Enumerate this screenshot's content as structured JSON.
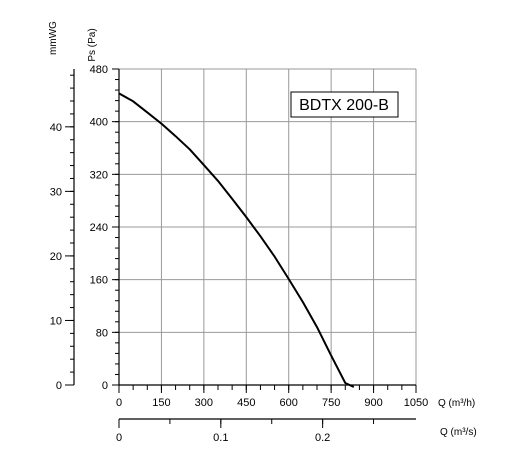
{
  "chart_data": {
    "type": "line",
    "title": "BDTX 200-B",
    "series": [
      {
        "x": [
          0,
          50,
          100,
          150,
          200,
          250,
          300,
          350,
          400,
          450,
          500,
          550,
          600,
          650,
          700,
          750,
          800,
          830
        ],
        "y": [
          443,
          431,
          414,
          397,
          378,
          358,
          334,
          310,
          283,
          255,
          226,
          195,
          161,
          126,
          88,
          45,
          3,
          -3
        ]
      }
    ],
    "x_axis": {
      "label": "Q (m³/h)",
      "range": [
        0,
        1050
      ],
      "ticks": [
        "0",
        "150",
        "300",
        "450",
        "600",
        "750",
        "900",
        "1050"
      ],
      "minor_step": 50
    },
    "x_axis_secondary": {
      "label": "Q (m³/s)",
      "range": [
        0,
        0.2917
      ],
      "ticks": [
        "0",
        "0.1",
        "0.2"
      ],
      "minor_step": 0.05
    },
    "y_axis": {
      "label": "Ps (Pa)",
      "range": [
        0,
        480
      ],
      "ticks": [
        "0",
        "80",
        "160",
        "240",
        "320",
        "400",
        "480"
      ],
      "minor_step": 16
    },
    "y_axis_secondary": {
      "label": "mmWG",
      "range": [
        0,
        48.96
      ],
      "ticks": [
        "0",
        "10",
        "20",
        "30",
        "40"
      ],
      "minor_step": 2
    },
    "grid": true,
    "legend_position": "top-right"
  },
  "colors": {
    "line": "#000000",
    "grid": "#999999",
    "background": "#ffffff"
  }
}
